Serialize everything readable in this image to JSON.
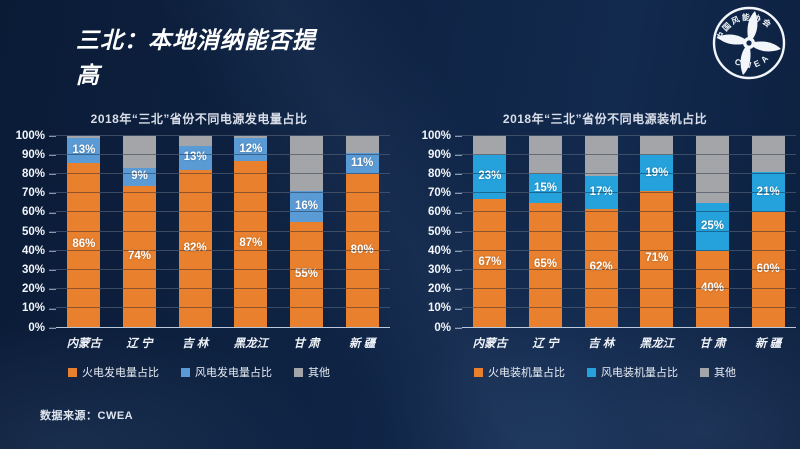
{
  "slide": {
    "title_line1": "三北：本地消纳能否提",
    "title_line2": "高",
    "source": "数据来源：CWEA",
    "logo": {
      "org_text": "中国风能协会",
      "abbr": "CWEA"
    }
  },
  "colors": {
    "background": "#0f2445",
    "thermal_orange": "#E8802D",
    "wind_blue_left": "#5B9BD5",
    "wind_blue_right": "#25A2DC",
    "other_gray": "#A3A5A9",
    "text_white": "#FFFFFF"
  },
  "chart_data": [
    {
      "type": "bar",
      "stacked": true,
      "title": "2018年“三北”省份不同电源发电量占比",
      "categories": [
        "内蒙古",
        "辽 宁",
        "吉 林",
        "黑龙江",
        "甘 肃",
        "新 疆"
      ],
      "series": [
        {
          "key": "thermal",
          "name": "火电发电量占比",
          "color": "#E8802D",
          "values": [
            86,
            74,
            82,
            87,
            55,
            80
          ],
          "show_labels": true
        },
        {
          "key": "wind",
          "name": "风电发电量占比",
          "color": "#5B9BD5",
          "values": [
            13,
            9,
            13,
            12,
            16,
            11
          ],
          "show_labels": true
        },
        {
          "key": "other",
          "name": "其他",
          "color": "#A3A5A9",
          "values": [
            1,
            17,
            5,
            1,
            29,
            9
          ],
          "show_labels": false
        }
      ],
      "ylim": [
        0,
        100
      ],
      "yticks": [
        "0%",
        "10%",
        "20%",
        "30%",
        "40%",
        "50%",
        "60%",
        "70%",
        "80%",
        "90%",
        "100%"
      ],
      "grid": true,
      "legend_position": "bottom",
      "value_suffix": "%"
    },
    {
      "type": "bar",
      "stacked": true,
      "title": "2018年“三北”省份不同电源装机占比",
      "categories": [
        "内蒙古",
        "辽 宁",
        "吉 林",
        "黑龙江",
        "甘 肃",
        "新 疆"
      ],
      "series": [
        {
          "key": "thermal",
          "name": "火电装机量占比",
          "color": "#E8802D",
          "values": [
            67,
            65,
            62,
            71,
            40,
            60
          ],
          "show_labels": true
        },
        {
          "key": "wind",
          "name": "风电装机量占比",
          "color": "#25A2DC",
          "values": [
            23,
            15,
            17,
            19,
            25,
            21
          ],
          "show_labels": true
        },
        {
          "key": "other",
          "name": "其他",
          "color": "#A3A5A9",
          "values": [
            10,
            20,
            21,
            10,
            35,
            19
          ],
          "show_labels": false
        }
      ],
      "ylim": [
        0,
        100
      ],
      "yticks": [
        "0%",
        "10%",
        "20%",
        "30%",
        "40%",
        "50%",
        "60%",
        "70%",
        "80%",
        "90%",
        "100%"
      ],
      "grid": true,
      "legend_position": "bottom",
      "value_suffix": "%"
    }
  ]
}
